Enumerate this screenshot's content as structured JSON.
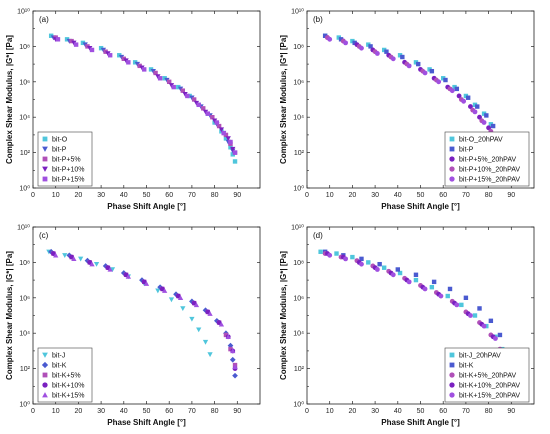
{
  "colors": {
    "cyan": "#4fc6dc",
    "blue": "#4a5ad0",
    "mauve": "#b050b8",
    "purple": "#7a20c0",
    "violet": "#a050e0"
  },
  "chart_data": [
    {
      "panel": "(a)",
      "type": "scatter",
      "xlabel": "Phase Shift Angle [°]",
      "ylabel": "Complex Shear Modulus, |G*| [Pa]",
      "xlim": [
        0,
        100
      ],
      "xticks": [
        "0",
        "10",
        "20",
        "30",
        "40",
        "50",
        "60",
        "70",
        "80",
        "90"
      ],
      "ylim_log10": [
        0,
        10
      ],
      "yticks": [
        "10⁰",
        "10²",
        "10⁴",
        "10⁶",
        "10⁸",
        "10¹⁰"
      ],
      "legend_position": "bottom-left",
      "series": [
        {
          "name": "bit-O",
          "marker": "square",
          "color": "cyan",
          "x": [
            8,
            15,
            22,
            30,
            38,
            45,
            52,
            58,
            64,
            69,
            73,
            77,
            80,
            83,
            85,
            87,
            88,
            89
          ],
          "y_log10": [
            8.6,
            8.4,
            8.2,
            7.9,
            7.5,
            7.1,
            6.7,
            6.2,
            5.7,
            5.2,
            4.7,
            4.2,
            3.7,
            3.2,
            2.8,
            2.3,
            1.9,
            1.5
          ]
        },
        {
          "name": "bit-P",
          "marker": "triangle-down",
          "color": "blue",
          "x": [
            9,
            16,
            23,
            31,
            39,
            46,
            53,
            59,
            65,
            70,
            74,
            78,
            81,
            84,
            86,
            88
          ],
          "y_log10": [
            8.5,
            8.3,
            8.1,
            7.8,
            7.4,
            7.0,
            6.6,
            6.1,
            5.6,
            5.1,
            4.6,
            4.1,
            3.6,
            3.1,
            2.6,
            2.1
          ]
        },
        {
          "name": "bit-P+5%",
          "marker": "square",
          "color": "mauve",
          "x": [
            10,
            17,
            24,
            32,
            40,
            47,
            54,
            60,
            66,
            71,
            75,
            79,
            82,
            85,
            87,
            89
          ],
          "y_log10": [
            8.5,
            8.3,
            8.0,
            7.7,
            7.3,
            6.9,
            6.5,
            6.0,
            5.5,
            5.0,
            4.5,
            4.0,
            3.5,
            3.0,
            2.5,
            2.0
          ]
        },
        {
          "name": "bit-P+10%",
          "marker": "triangle-down",
          "color": "purple",
          "x": [
            10,
            18,
            25,
            33,
            41,
            48,
            55,
            61,
            67,
            72,
            76,
            80,
            83,
            86,
            88
          ],
          "y_log10": [
            8.4,
            8.2,
            7.9,
            7.6,
            7.2,
            6.8,
            6.3,
            5.8,
            5.3,
            4.8,
            4.3,
            3.8,
            3.3,
            2.8,
            2.2
          ]
        },
        {
          "name": "bit-P+15%",
          "marker": "square",
          "color": "violet",
          "x": [
            11,
            19,
            26,
            34,
            42,
            49,
            56,
            62,
            68,
            73,
            77,
            81,
            84,
            87,
            89
          ],
          "y_log10": [
            8.4,
            8.1,
            7.8,
            7.5,
            7.1,
            6.7,
            6.2,
            5.7,
            5.2,
            4.7,
            4.2,
            3.7,
            3.1,
            2.6,
            2.0
          ]
        }
      ]
    },
    {
      "panel": "(b)",
      "type": "scatter",
      "xlabel": "Phase Shift Angle [°]",
      "ylabel": "Complex Shear Modulus, |G*| [Pa]",
      "xlim": [
        0,
        100
      ],
      "xticks": [
        "0",
        "10",
        "20",
        "30",
        "40",
        "50",
        "60",
        "70",
        "80",
        "90"
      ],
      "ylim_log10": [
        0,
        10
      ],
      "yticks": [
        "10⁰",
        "10²",
        "10⁴",
        "10⁶",
        "10⁸",
        "10¹⁰"
      ],
      "legend_position": "bottom-right",
      "series": [
        {
          "name": "bit-O_20hPAV",
          "marker": "square",
          "color": "cyan",
          "x": [
            8,
            14,
            20,
            27,
            34,
            41,
            48,
            54,
            60,
            65,
            70,
            74,
            78,
            81,
            84,
            86,
            88
          ],
          "y_log10": [
            8.6,
            8.5,
            8.3,
            8.1,
            7.8,
            7.5,
            7.1,
            6.7,
            6.2,
            5.7,
            5.2,
            4.7,
            4.2,
            3.6,
            3.0,
            2.5,
            2.0
          ]
        },
        {
          "name": "bit-P",
          "marker": "square",
          "color": "blue",
          "x": [
            8,
            15,
            21,
            28,
            35,
            42,
            49,
            55,
            61,
            66,
            71,
            75,
            79,
            82,
            85
          ],
          "y_log10": [
            8.6,
            8.4,
            8.2,
            8.0,
            7.7,
            7.4,
            7.0,
            6.6,
            6.1,
            5.6,
            5.1,
            4.6,
            4.1,
            3.5,
            2.9
          ]
        },
        {
          "name": "bit-P+5%_20hPAV",
          "marker": "circle",
          "color": "purple",
          "x": [
            9,
            16,
            22,
            29,
            36,
            43,
            50,
            56,
            62,
            67,
            72,
            76,
            80,
            83
          ],
          "y_log10": [
            8.5,
            8.3,
            8.1,
            7.8,
            7.5,
            7.1,
            6.7,
            6.2,
            5.7,
            5.2,
            4.6,
            4.0,
            3.4,
            2.8
          ]
        },
        {
          "name": "bit-P+10%_20hPAV",
          "marker": "circle",
          "color": "mauve",
          "x": [
            9,
            16,
            23,
            30,
            37,
            44,
            51,
            57,
            63,
            68,
            73,
            77,
            81
          ],
          "y_log10": [
            8.5,
            8.3,
            8.0,
            7.7,
            7.4,
            7.0,
            6.6,
            6.1,
            5.6,
            5.0,
            4.4,
            3.8,
            3.2
          ]
        },
        {
          "name": "bit-P+15%_20hPAV",
          "marker": "circle",
          "color": "violet",
          "x": [
            10,
            17,
            24,
            31,
            38,
            45,
            52,
            58,
            64,
            69,
            74,
            78
          ],
          "y_log10": [
            8.4,
            8.2,
            7.9,
            7.6,
            7.3,
            6.9,
            6.5,
            6.0,
            5.5,
            4.9,
            4.3,
            3.7
          ]
        }
      ]
    },
    {
      "panel": "(c)",
      "type": "scatter",
      "xlabel": "Phase Shift Angle [°]",
      "ylabel": "Complex Shear Modulus, |G*| [Pa]",
      "xlim": [
        0,
        100
      ],
      "xticks": [
        "0",
        "10",
        "20",
        "30",
        "40",
        "50",
        "60",
        "70",
        "80",
        "90"
      ],
      "ylim_log10": [
        0,
        10
      ],
      "yticks": [
        "10⁰",
        "10²",
        "10⁴",
        "10⁶",
        "10⁸",
        "10¹⁰"
      ],
      "legend_position": "bottom-left",
      "series": [
        {
          "name": "bit-J",
          "marker": "triangle-down",
          "color": "cyan",
          "x": [
            7,
            14,
            21,
            28,
            35,
            42,
            49,
            55,
            61,
            66,
            70,
            73,
            76,
            78
          ],
          "y_log10": [
            8.6,
            8.4,
            8.2,
            7.9,
            7.6,
            7.2,
            6.8,
            6.4,
            5.9,
            5.4,
            4.8,
            4.2,
            3.5,
            2.8
          ]
        },
        {
          "name": "bit-K",
          "marker": "diamond",
          "color": "blue",
          "x": [
            8,
            16,
            24,
            32,
            40,
            48,
            56,
            63,
            70,
            76,
            81,
            85,
            87,
            88,
            89
          ],
          "y_log10": [
            8.6,
            8.4,
            8.1,
            7.8,
            7.4,
            7.0,
            6.6,
            6.2,
            5.8,
            5.3,
            4.7,
            4.0,
            3.3,
            2.5,
            1.6
          ]
        },
        {
          "name": "bit-K+5%",
          "marker": "square",
          "color": "mauve",
          "x": [
            9,
            17,
            25,
            33,
            41,
            49,
            57,
            64,
            71,
            77,
            82,
            85,
            87,
            89
          ],
          "y_log10": [
            8.5,
            8.3,
            8.0,
            7.7,
            7.3,
            6.9,
            6.5,
            6.1,
            5.7,
            5.2,
            4.6,
            3.9,
            3.1,
            2.2
          ]
        },
        {
          "name": "bit-K+10%",
          "marker": "circle",
          "color": "purple",
          "x": [
            9,
            17,
            25,
            33,
            41,
            49,
            57,
            64,
            71,
            77,
            82,
            86,
            88,
            89
          ],
          "y_log10": [
            8.5,
            8.3,
            8.0,
            7.7,
            7.3,
            6.9,
            6.5,
            6.1,
            5.7,
            5.2,
            4.6,
            3.8,
            3.0,
            2.0
          ]
        },
        {
          "name": "bit-K+15%",
          "marker": "triangle-up",
          "color": "violet",
          "x": [
            10,
            18,
            26,
            34,
            42,
            50,
            58,
            65,
            72,
            78,
            83,
            86,
            88,
            89
          ],
          "y_log10": [
            8.4,
            8.2,
            7.9,
            7.6,
            7.2,
            6.8,
            6.4,
            6.0,
            5.6,
            5.1,
            4.5,
            3.8,
            3.0,
            2.1
          ]
        }
      ]
    },
    {
      "panel": "(d)",
      "type": "scatter",
      "xlabel": "Phase Shift Angle [°]",
      "ylabel": "Complex Shear Modulus, |G*| [Pa]",
      "xlim": [
        0,
        100
      ],
      "xticks": [
        "0",
        "10",
        "20",
        "30",
        "40",
        "50",
        "60",
        "70",
        "80",
        "90"
      ],
      "ylim_log10": [
        0,
        10
      ],
      "yticks": [
        "10⁰",
        "10²",
        "10⁴",
        "10⁶",
        "10⁸",
        "10¹⁰"
      ],
      "legend_position": "bottom-right",
      "series": [
        {
          "name": "bit-J_20hPAV",
          "marker": "square",
          "color": "cyan",
          "x": [
            6,
            13,
            20,
            27,
            34,
            41,
            48,
            55,
            62,
            68,
            74,
            79,
            83,
            86,
            88,
            89
          ],
          "y_log10": [
            8.6,
            8.5,
            8.3,
            8.0,
            7.7,
            7.4,
            7.0,
            6.6,
            6.1,
            5.6,
            5.0,
            4.4,
            3.8,
            3.1,
            2.4,
            1.8
          ]
        },
        {
          "name": "bit-K",
          "marker": "square",
          "color": "blue",
          "x": [
            8,
            16,
            24,
            32,
            40,
            48,
            56,
            63,
            70,
            76,
            81,
            85,
            87,
            89
          ],
          "y_log10": [
            8.6,
            8.4,
            8.2,
            7.9,
            7.6,
            7.3,
            6.9,
            6.5,
            6.0,
            5.4,
            4.7,
            3.9,
            3.0,
            2.1
          ]
        },
        {
          "name": "bit-K+5%_20hPAV",
          "marker": "circle",
          "color": "mauve",
          "x": [
            8,
            15,
            22,
            29,
            36,
            43,
            50,
            57,
            64,
            70,
            76,
            81,
            85,
            88
          ],
          "y_log10": [
            8.5,
            8.3,
            8.1,
            7.8,
            7.5,
            7.1,
            6.7,
            6.3,
            5.8,
            5.2,
            4.6,
            3.9,
            3.1,
            2.3
          ]
        },
        {
          "name": "bit-K+10%_20hPAV",
          "marker": "circle",
          "color": "purple",
          "x": [
            9,
            16,
            23,
            30,
            37,
            44,
            51,
            58,
            65,
            71,
            77,
            82,
            86,
            88
          ],
          "y_log10": [
            8.5,
            8.3,
            8.0,
            7.7,
            7.4,
            7.0,
            6.6,
            6.2,
            5.7,
            5.1,
            4.5,
            3.8,
            3.0,
            2.2
          ]
        },
        {
          "name": "bit-K+15%_20hPAV",
          "marker": "circle",
          "color": "violet",
          "x": [
            10,
            17,
            24,
            31,
            38,
            45,
            52,
            59,
            66,
            72,
            78,
            83,
            86,
            88
          ],
          "y_log10": [
            8.4,
            8.2,
            7.9,
            7.6,
            7.3,
            6.9,
            6.5,
            6.1,
            5.6,
            5.0,
            4.4,
            3.7,
            2.9,
            2.1
          ]
        }
      ]
    }
  ]
}
